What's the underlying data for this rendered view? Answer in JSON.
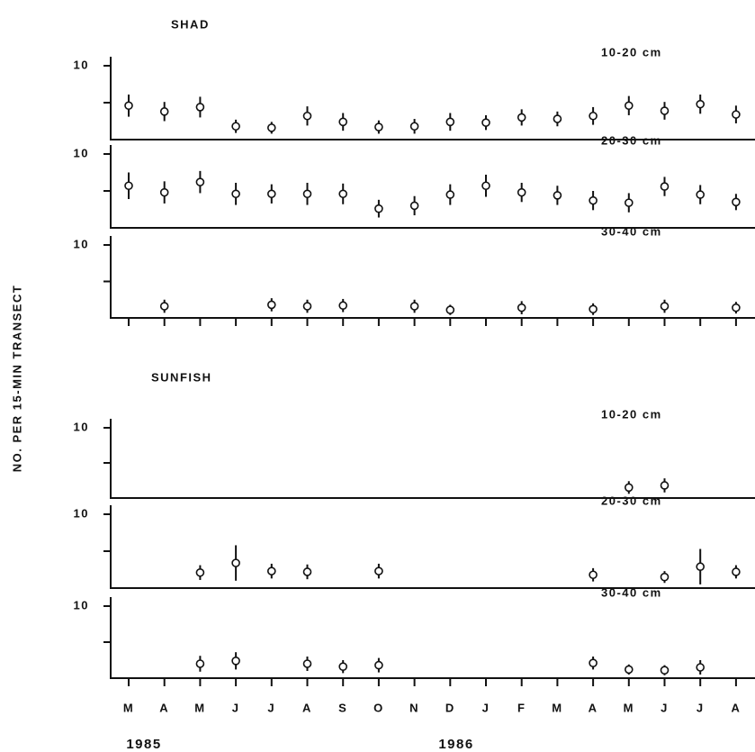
{
  "chart_data": [
    {
      "type": "scatter",
      "title": "SHAD",
      "ylabel": "NO. PER 15-MIN TRANSECT",
      "label": "10-20 cm",
      "color": "#111",
      "values": [
        4.6,
        3.8,
        4.4,
        1.8,
        1.6,
        3.2,
        2.4,
        1.7,
        1.8,
        2.4,
        2.3,
        3.0,
        2.8,
        3.2,
        4.6,
        3.9,
        4.8,
        3.4
      ],
      "errors": [
        1.5,
        1.3,
        1.4,
        0.9,
        0.8,
        1.3,
        1.2,
        0.9,
        1.0,
        1.2,
        1.0,
        1.1,
        1.0,
        1.2,
        1.3,
        1.2,
        1.3,
        1.2
      ],
      "ylim": [
        0,
        10
      ],
      "yticks": [
        10
      ],
      "minor_yticks": [
        5
      ]
    },
    {
      "type": "scatter",
      "label": "20-30 cm",
      "color": "#111",
      "values": [
        5.7,
        4.8,
        6.2,
        4.6,
        4.6,
        4.6,
        4.6,
        2.6,
        3.0,
        4.5,
        5.7,
        4.8,
        4.4,
        3.7,
        3.4,
        5.6,
        4.5,
        3.5
      ],
      "errors": [
        1.8,
        1.5,
        1.5,
        1.5,
        1.3,
        1.5,
        1.4,
        1.2,
        1.3,
        1.4,
        1.5,
        1.3,
        1.3,
        1.3,
        1.3,
        1.3,
        1.3,
        1.1
      ],
      "ylim": [
        0,
        10
      ],
      "yticks": [
        10
      ],
      "minor_yticks": [
        5
      ]
    },
    {
      "type": "scatter",
      "label": "30-40 cm",
      "color": "#111",
      "values": [
        null,
        1.6,
        null,
        null,
        1.8,
        1.6,
        1.7,
        null,
        1.6,
        1.1,
        null,
        1.4,
        null,
        1.2,
        null,
        1.6,
        null,
        1.4
      ],
      "errors": [
        null,
        0.9,
        null,
        null,
        0.9,
        0.9,
        0.9,
        null,
        0.9,
        0.7,
        null,
        0.9,
        null,
        0.8,
        null,
        0.9,
        null,
        0.8
      ],
      "ylim": [
        0,
        10
      ],
      "yticks": [
        10
      ],
      "minor_yticks": [
        5
      ]
    },
    {
      "type": "scatter",
      "title": "SUNFISH",
      "label": "10-20 cm",
      "color": "#111",
      "values": [
        null,
        null,
        null,
        null,
        null,
        null,
        null,
        null,
        null,
        null,
        null,
        null,
        null,
        null,
        1.5,
        1.8,
        null,
        null
      ],
      "errors": [
        null,
        null,
        null,
        null,
        null,
        null,
        null,
        null,
        null,
        null,
        null,
        null,
        null,
        null,
        0.9,
        1.0,
        null,
        null
      ],
      "ylim": [
        0,
        10
      ],
      "yticks": [
        10
      ],
      "minor_yticks": [
        5
      ]
    },
    {
      "type": "scatter",
      "label": "20-30 cm",
      "color": "#111",
      "values": [
        null,
        null,
        2.1,
        3.4,
        2.3,
        2.2,
        null,
        2.3,
        null,
        null,
        null,
        null,
        null,
        1.8,
        null,
        1.5,
        2.9,
        2.2
      ],
      "errors": [
        null,
        null,
        1.0,
        2.4,
        1.0,
        1.0,
        null,
        1.0,
        null,
        null,
        null,
        null,
        null,
        0.9,
        null,
        0.8,
        2.4,
        0.9
      ],
      "ylim": [
        0,
        10
      ],
      "yticks": [
        10
      ],
      "minor_yticks": [
        5
      ]
    },
    {
      "type": "scatter",
      "label": "30-40 cm",
      "color": "#111",
      "categories": [
        "M",
        "A",
        "M",
        "J",
        "J",
        "A",
        "S",
        "O",
        "N",
        "D",
        "J",
        "F",
        "M",
        "A",
        "M",
        "J",
        "J",
        "A"
      ],
      "annotations": [
        "1985",
        "1986"
      ],
      "values": [
        null,
        null,
        2.0,
        2.4,
        null,
        2.0,
        1.6,
        1.8,
        null,
        null,
        null,
        null,
        null,
        2.1,
        1.2,
        1.1,
        1.5,
        null
      ],
      "errors": [
        null,
        null,
        1.1,
        1.2,
        null,
        1.0,
        0.9,
        1.0,
        null,
        null,
        null,
        null,
        null,
        0.9,
        0.7,
        0.7,
        1.0,
        null
      ],
      "ylim": [
        0,
        10
      ],
      "yticks": [
        10
      ],
      "minor_yticks": [
        5
      ]
    }
  ]
}
